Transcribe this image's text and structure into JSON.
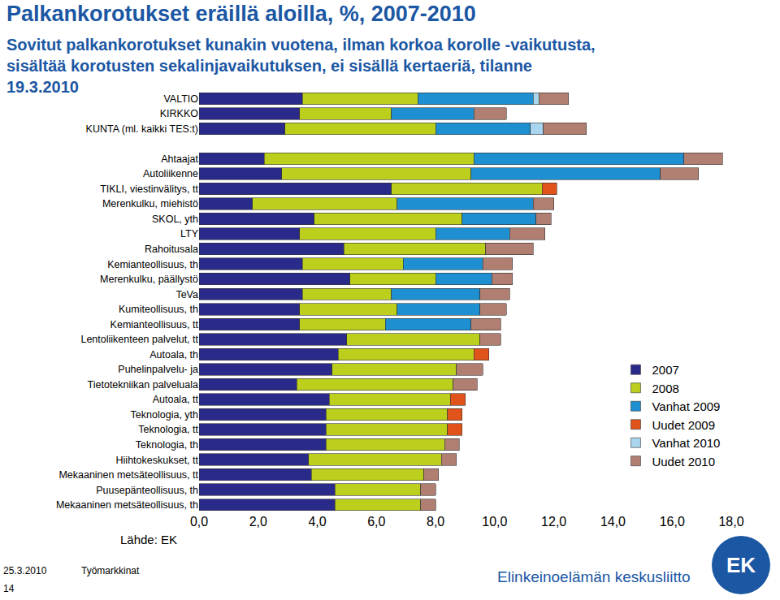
{
  "chart_data": {
    "type": "bar",
    "orientation": "horizontal",
    "stacked": true,
    "grid": false,
    "legend": "right",
    "title": "Palkankorotukset eräillä aloilla, %, 2007-2010",
    "subtitle": "Sovitut palkankorotukset kunakin vuotena, ilman korkoa korolle -vaikutusta,\nsisältää korotusten sekalinjavaikutuksen, ei sisällä kertaeriä, tilanne\n19.3.2010",
    "source": "Lähde: EK",
    "footer": {
      "date": "25.3.2010",
      "section": "Työmarkkinat",
      "page": "14",
      "organization": "Elinkeinoelämän keskusliitto",
      "logo": "EK"
    },
    "categories": [
      "VALTIO",
      "KIRKKO",
      "KUNTA (ml. kaikki TES:t)",
      null,
      "Ahtaajat",
      "Autoliikenne",
      "TIKLI, viestinvälitys, tt",
      "Merenkulku, miehistö",
      "SKOL, yth",
      "LTY",
      "Rahoitusala",
      "Kemianteollisuus, th",
      "Merenkulku, päällystö",
      "TeVa",
      "Kumiteollisuus, th",
      "Kemianteollisuus, tt",
      "Lentoliikenteen palvelut, tt",
      "Autoala, th",
      "Puhelinpalvelu- ja",
      "Tietotekniikan palveluala",
      "Autoala, tt",
      "Teknologia, yth",
      "Teknologia, tt",
      "Teknologia, th",
      "Hiihtokeskukset, tt",
      "Mekaaninen metsäteollisuus, tt",
      "Puusepänteollisuus, th",
      "Mekaaninen metsäteollisuus, th"
    ],
    "series": [
      {
        "name": "2007",
        "color": "#2a2a8a",
        "values": [
          3.5,
          3.4,
          2.9,
          null,
          2.2,
          2.8,
          6.5,
          1.8,
          3.9,
          3.4,
          4.9,
          3.5,
          5.1,
          3.5,
          3.4,
          3.4,
          5.0,
          4.7,
          4.5,
          3.3,
          4.4,
          4.3,
          4.3,
          4.3,
          3.7,
          3.8,
          4.6,
          4.6
        ]
      },
      {
        "name": "2008",
        "color": "#bccf1c",
        "values": [
          3.9,
          3.1,
          5.1,
          null,
          7.1,
          6.4,
          5.1,
          4.9,
          5.0,
          4.6,
          4.8,
          3.4,
          2.9,
          3.0,
          3.3,
          2.9,
          4.5,
          4.6,
          4.2,
          5.3,
          4.1,
          4.1,
          4.1,
          4.0,
          4.5,
          3.8,
          2.9,
          2.9
        ]
      },
      {
        "name": "Vanhat 2009",
        "color": "#1e8fd0",
        "values": [
          3.9,
          2.8,
          3.2,
          null,
          7.1,
          6.4,
          null,
          4.6,
          2.5,
          2.5,
          null,
          2.7,
          1.9,
          3.0,
          2.8,
          2.9,
          null,
          null,
          null,
          null,
          null,
          null,
          null,
          null,
          null,
          null,
          null,
          null
        ]
      },
      {
        "name": "Uudet 2009",
        "color": "#e0531a",
        "values": [
          null,
          null,
          null,
          null,
          null,
          null,
          0.5,
          null,
          null,
          null,
          null,
          null,
          null,
          null,
          null,
          null,
          null,
          0.5,
          null,
          null,
          0.5,
          0.5,
          0.5,
          null,
          null,
          null,
          null,
          null
        ]
      },
      {
        "name": "Vanhat 2010",
        "color": "#a9d5ee",
        "values": [
          0.2,
          null,
          0.45,
          null,
          null,
          null,
          null,
          null,
          null,
          null,
          null,
          null,
          null,
          null,
          null,
          null,
          null,
          null,
          null,
          null,
          null,
          null,
          null,
          null,
          null,
          null,
          null,
          null
        ]
      },
      {
        "name": "Uudet 2010",
        "color": "#b07f72",
        "values": [
          1.0,
          1.1,
          1.45,
          null,
          1.3,
          1.3,
          null,
          0.7,
          0.5,
          1.2,
          1.6,
          1.0,
          0.7,
          1.0,
          0.9,
          1.0,
          0.7,
          null,
          0.9,
          0.8,
          null,
          null,
          null,
          0.5,
          0.5,
          0.5,
          0.5,
          0.5
        ]
      }
    ],
    "xlim": [
      0,
      18
    ],
    "xticks": [
      {
        "value": 0,
        "label": "0,0"
      },
      {
        "value": 2,
        "label": "2,0"
      },
      {
        "value": 4,
        "label": "4,0"
      },
      {
        "value": 6,
        "label": "6,0"
      },
      {
        "value": 8,
        "label": "8,0"
      },
      {
        "value": 10,
        "label": "10,0"
      },
      {
        "value": 12,
        "label": "12,0"
      },
      {
        "value": 14,
        "label": "14,0"
      },
      {
        "value": 16,
        "label": "16,0"
      },
      {
        "value": 18,
        "label": "18,0"
      }
    ]
  }
}
